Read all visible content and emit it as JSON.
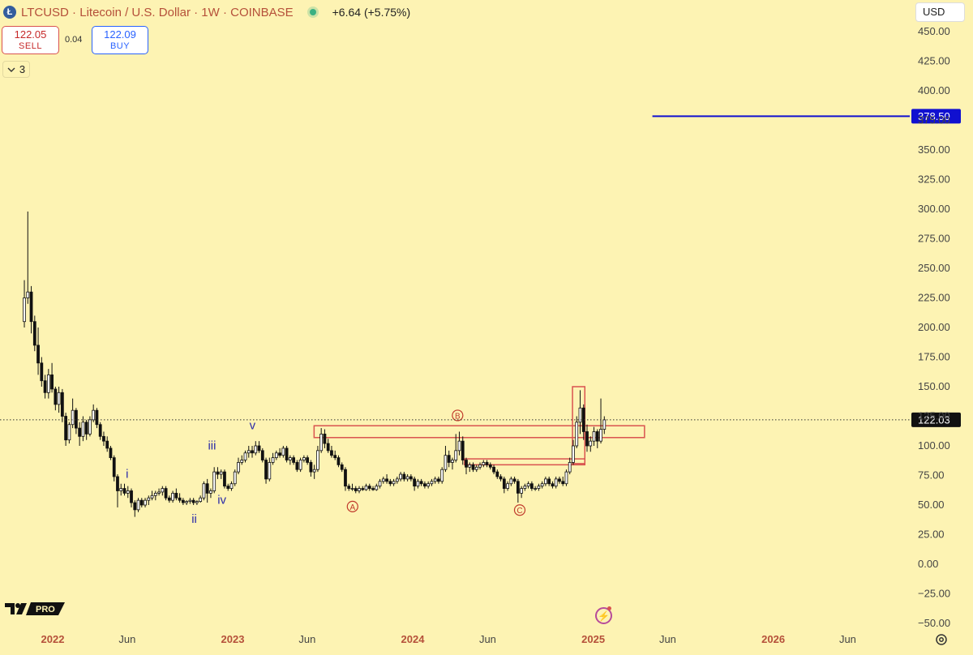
{
  "header": {
    "logo_letter": "Ł",
    "title": "LTCUSD · Litecoin / U.S. Dollar · 1W · COINBASE",
    "change": "+6.64 (+5.75%)",
    "status_color": "#3bb082"
  },
  "trade": {
    "sell_price": "122.05",
    "sell_label": "SELL",
    "spread": "0.04",
    "buy_price": "122.09",
    "buy_label": "BUY"
  },
  "indicators": {
    "count": "3"
  },
  "currency": {
    "label": "USD"
  },
  "colors": {
    "background": "#fdf3b3",
    "candle": "#111111",
    "zone": "#d9534f",
    "label_red": "#c0392b",
    "label_blue": "#2a2aa8",
    "target_line": "#1010d0",
    "axis_text": "#444444"
  },
  "chart_data": {
    "type": "candlestick",
    "symbol": "LTCUSD",
    "interval": "1W",
    "ylim": [
      -50,
      450
    ],
    "y_ticks": [
      "450.00",
      "425.00",
      "400.00",
      "375.00",
      "350.00",
      "325.00",
      "300.00",
      "275.00",
      "250.00",
      "225.00",
      "200.00",
      "175.00",
      "150.00",
      "125.00",
      "100.00",
      "75.00",
      "50.00",
      "25.00",
      "0.00",
      "−25.00",
      "−50.00"
    ],
    "y_tick_values": [
      450,
      425,
      400,
      375,
      350,
      325,
      300,
      275,
      250,
      225,
      200,
      175,
      150,
      125,
      100,
      75,
      50,
      25,
      0,
      -25,
      -50
    ],
    "x_ticks": [
      {
        "label": "2022",
        "date": "2022-01-01",
        "bold": true
      },
      {
        "label": "Jun",
        "date": "2022-06-01",
        "bold": false
      },
      {
        "label": "2023",
        "date": "2023-01-01",
        "bold": true
      },
      {
        "label": "Jun",
        "date": "2023-06-01",
        "bold": false
      },
      {
        "label": "2024",
        "date": "2024-01-01",
        "bold": true
      },
      {
        "label": "Jun",
        "date": "2024-06-01",
        "bold": false
      },
      {
        "label": "2025",
        "date": "2025-01-01",
        "bold": true
      },
      {
        "label": "Jun",
        "date": "2025-06-01",
        "bold": false
      },
      {
        "label": "2026",
        "date": "2026-01-01",
        "bold": true
      },
      {
        "label": "Jun",
        "date": "2026-06-01",
        "bold": false
      }
    ],
    "current_price": {
      "value": 122.03,
      "label": "122.03"
    },
    "target_price": {
      "value": 378.5,
      "label": "378.50",
      "from_date": "2025-05-01"
    },
    "waves": [
      {
        "label": "i",
        "date": "2022-06-01",
        "price": 73,
        "color": "blue",
        "circled": false
      },
      {
        "label": "ii",
        "date": "2022-10-15",
        "price": 35,
        "color": "blue",
        "circled": false
      },
      {
        "label": "iii",
        "date": "2022-11-20",
        "price": 97,
        "color": "blue",
        "circled": false
      },
      {
        "label": "iv",
        "date": "2022-12-10",
        "price": 51,
        "color": "blue",
        "circled": false
      },
      {
        "label": "v",
        "date": "2023-02-10",
        "price": 114,
        "color": "blue",
        "circled": false
      },
      {
        "label": "A",
        "date": "2023-09-01",
        "price": 46,
        "color": "red",
        "circled": true
      },
      {
        "label": "B",
        "date": "2024-04-01",
        "price": 123,
        "color": "red",
        "circled": true
      },
      {
        "label": "C",
        "date": "2024-08-05",
        "price": 43,
        "color": "red",
        "circled": true
      }
    ],
    "zones": [
      {
        "from": "2023-06-15",
        "to": "2025-04-15",
        "top": 117,
        "bottom": 107
      },
      {
        "from": "2024-04-15",
        "to": "2024-12-15",
        "top": 89,
        "bottom": 84
      },
      {
        "from": "2024-11-20",
        "to": "2024-12-15",
        "top": 150,
        "bottom": 85
      }
    ],
    "candles_weekly": [
      [
        "2021-11-01",
        205,
        240,
        200,
        225
      ],
      [
        "2021-11-08",
        225,
        298,
        220,
        230
      ],
      [
        "2021-11-15",
        230,
        235,
        195,
        205
      ],
      [
        "2021-11-22",
        205,
        210,
        180,
        185
      ],
      [
        "2021-11-29",
        185,
        200,
        160,
        170
      ],
      [
        "2021-12-06",
        170,
        175,
        150,
        155
      ],
      [
        "2021-12-13",
        155,
        160,
        140,
        145
      ],
      [
        "2021-12-20",
        145,
        165,
        140,
        160
      ],
      [
        "2021-12-27",
        160,
        170,
        145,
        148
      ],
      [
        "2022-01-03",
        148,
        150,
        130,
        135
      ],
      [
        "2022-01-10",
        135,
        150,
        128,
        145
      ],
      [
        "2022-01-17",
        145,
        148,
        120,
        125
      ],
      [
        "2022-01-24",
        125,
        128,
        100,
        105
      ],
      [
        "2022-01-31",
        105,
        120,
        102,
        118
      ],
      [
        "2022-02-07",
        118,
        140,
        115,
        130
      ],
      [
        "2022-02-14",
        130,
        132,
        110,
        115
      ],
      [
        "2022-02-21",
        115,
        120,
        100,
        108
      ],
      [
        "2022-02-28",
        108,
        125,
        104,
        120
      ],
      [
        "2022-03-07",
        120,
        122,
        105,
        110
      ],
      [
        "2022-03-14",
        110,
        125,
        108,
        122
      ],
      [
        "2022-03-21",
        122,
        135,
        120,
        130
      ],
      [
        "2022-03-28",
        130,
        132,
        115,
        118
      ],
      [
        "2022-04-04",
        118,
        120,
        105,
        108
      ],
      [
        "2022-04-11",
        108,
        112,
        100,
        104
      ],
      [
        "2022-04-18",
        104,
        108,
        95,
        98
      ],
      [
        "2022-04-25",
        98,
        100,
        88,
        90
      ],
      [
        "2022-05-02",
        90,
        92,
        70,
        74
      ],
      [
        "2022-05-09",
        74,
        76,
        48,
        62
      ],
      [
        "2022-05-16",
        62,
        68,
        58,
        64
      ],
      [
        "2022-05-23",
        64,
        68,
        58,
        60
      ],
      [
        "2022-05-30",
        60,
        66,
        56,
        62
      ],
      [
        "2022-06-06",
        62,
        64,
        48,
        52
      ],
      [
        "2022-06-13",
        52,
        54,
        40,
        46
      ],
      [
        "2022-06-20",
        46,
        56,
        44,
        54
      ],
      [
        "2022-06-27",
        54,
        56,
        48,
        50
      ],
      [
        "2022-07-04",
        50,
        56,
        48,
        54
      ],
      [
        "2022-07-11",
        54,
        58,
        50,
        56
      ],
      [
        "2022-07-18",
        56,
        62,
        54,
        58
      ],
      [
        "2022-07-25",
        58,
        62,
        54,
        60
      ],
      [
        "2022-08-01",
        60,
        64,
        58,
        61
      ],
      [
        "2022-08-08",
        61,
        66,
        58,
        64
      ],
      [
        "2022-08-15",
        64,
        66,
        54,
        56
      ],
      [
        "2022-08-22",
        56,
        58,
        52,
        54
      ],
      [
        "2022-08-29",
        54,
        62,
        52,
        60
      ],
      [
        "2022-09-05",
        60,
        64,
        54,
        56
      ],
      [
        "2022-09-12",
        56,
        60,
        52,
        54
      ],
      [
        "2022-09-19",
        54,
        56,
        50,
        52
      ],
      [
        "2022-09-26",
        52,
        54,
        50,
        53
      ],
      [
        "2022-10-03",
        53,
        56,
        51,
        54
      ],
      [
        "2022-10-10",
        54,
        56,
        50,
        52
      ],
      [
        "2022-10-17",
        52,
        54,
        50,
        53
      ],
      [
        "2022-10-24",
        53,
        58,
        52,
        56
      ],
      [
        "2022-10-31",
        56,
        70,
        54,
        68
      ],
      [
        "2022-11-07",
        68,
        72,
        52,
        60
      ],
      [
        "2022-11-14",
        60,
        64,
        56,
        62
      ],
      [
        "2022-11-21",
        62,
        82,
        60,
        78
      ],
      [
        "2022-11-28",
        78,
        82,
        72,
        76
      ],
      [
        "2022-12-05",
        76,
        80,
        72,
        78
      ],
      [
        "2022-12-12",
        78,
        80,
        64,
        66
      ],
      [
        "2022-12-19",
        66,
        68,
        62,
        64
      ],
      [
        "2022-12-26",
        64,
        70,
        62,
        68
      ],
      [
        "2023-01-02",
        68,
        80,
        66,
        78
      ],
      [
        "2023-01-09",
        78,
        90,
        76,
        86
      ],
      [
        "2023-01-16",
        86,
        92,
        84,
        88
      ],
      [
        "2023-01-23",
        88,
        96,
        86,
        94
      ],
      [
        "2023-01-30",
        94,
        100,
        90,
        96
      ],
      [
        "2023-02-06",
        96,
        100,
        90,
        94
      ],
      [
        "2023-02-13",
        94,
        104,
        92,
        100
      ],
      [
        "2023-02-20",
        100,
        104,
        94,
        96
      ],
      [
        "2023-02-27",
        96,
        98,
        86,
        88
      ],
      [
        "2023-03-06",
        88,
        90,
        68,
        72
      ],
      [
        "2023-03-13",
        72,
        90,
        70,
        86
      ],
      [
        "2023-03-20",
        86,
        94,
        84,
        90
      ],
      [
        "2023-03-27",
        90,
        96,
        88,
        94
      ],
      [
        "2023-04-03",
        94,
        98,
        90,
        92
      ],
      [
        "2023-04-10",
        92,
        100,
        90,
        98
      ],
      [
        "2023-04-17",
        98,
        100,
        86,
        88
      ],
      [
        "2023-04-24",
        88,
        92,
        84,
        90
      ],
      [
        "2023-05-01",
        90,
        92,
        84,
        86
      ],
      [
        "2023-05-08",
        86,
        88,
        78,
        80
      ],
      [
        "2023-05-15",
        80,
        90,
        78,
        88
      ],
      [
        "2023-05-22",
        88,
        92,
        86,
        90
      ],
      [
        "2023-05-29",
        90,
        92,
        84,
        86
      ],
      [
        "2023-06-05",
        86,
        88,
        74,
        78
      ],
      [
        "2023-06-12",
        78,
        84,
        72,
        80
      ],
      [
        "2023-06-19",
        80,
        100,
        78,
        96
      ],
      [
        "2023-06-26",
        96,
        115,
        94,
        110
      ],
      [
        "2023-07-03",
        110,
        114,
        98,
        102
      ],
      [
        "2023-07-10",
        102,
        106,
        94,
        96
      ],
      [
        "2023-07-17",
        96,
        100,
        90,
        92
      ],
      [
        "2023-07-24",
        92,
        96,
        88,
        90
      ],
      [
        "2023-07-31",
        90,
        92,
        82,
        84
      ],
      [
        "2023-08-07",
        84,
        86,
        78,
        80
      ],
      [
        "2023-08-14",
        80,
        82,
        62,
        66
      ],
      [
        "2023-08-21",
        66,
        68,
        62,
        64
      ],
      [
        "2023-08-28",
        64,
        68,
        62,
        64
      ],
      [
        "2023-09-04",
        64,
        66,
        60,
        62
      ],
      [
        "2023-09-11",
        62,
        66,
        60,
        64
      ],
      [
        "2023-09-18",
        64,
        66,
        62,
        63
      ],
      [
        "2023-09-25",
        63,
        68,
        62,
        66
      ],
      [
        "2023-10-02",
        66,
        68,
        62,
        64
      ],
      [
        "2023-10-09",
        64,
        66,
        62,
        63
      ],
      [
        "2023-10-16",
        63,
        68,
        62,
        66
      ],
      [
        "2023-10-23",
        66,
        72,
        64,
        70
      ],
      [
        "2023-10-30",
        70,
        74,
        68,
        72
      ],
      [
        "2023-11-06",
        72,
        76,
        68,
        70
      ],
      [
        "2023-11-13",
        70,
        72,
        66,
        68
      ],
      [
        "2023-11-20",
        68,
        72,
        66,
        70
      ],
      [
        "2023-11-27",
        70,
        74,
        68,
        72
      ],
      [
        "2023-12-04",
        72,
        78,
        70,
        76
      ],
      [
        "2023-12-11",
        76,
        78,
        70,
        72
      ],
      [
        "2023-12-18",
        72,
        76,
        70,
        74
      ],
      [
        "2023-12-25",
        74,
        76,
        70,
        72
      ],
      [
        "2024-01-01",
        72,
        74,
        62,
        66
      ],
      [
        "2024-01-08",
        66,
        72,
        64,
        70
      ],
      [
        "2024-01-15",
        70,
        72,
        66,
        68
      ],
      [
        "2024-01-22",
        68,
        70,
        64,
        66
      ],
      [
        "2024-01-29",
        66,
        70,
        64,
        68
      ],
      [
        "2024-02-05",
        68,
        72,
        66,
        70
      ],
      [
        "2024-02-12",
        70,
        74,
        68,
        72
      ],
      [
        "2024-02-19",
        72,
        74,
        68,
        70
      ],
      [
        "2024-02-26",
        70,
        82,
        68,
        80
      ],
      [
        "2024-03-04",
        80,
        100,
        78,
        92
      ],
      [
        "2024-03-11",
        92,
        96,
        82,
        86
      ],
      [
        "2024-03-18",
        86,
        90,
        80,
        88
      ],
      [
        "2024-03-25",
        88,
        110,
        86,
        96
      ],
      [
        "2024-04-01",
        96,
        112,
        92,
        104
      ],
      [
        "2024-04-08",
        104,
        108,
        84,
        88
      ],
      [
        "2024-04-15",
        88,
        90,
        76,
        82
      ],
      [
        "2024-04-22",
        82,
        86,
        78,
        84
      ],
      [
        "2024-04-29",
        84,
        86,
        78,
        80
      ],
      [
        "2024-05-06",
        80,
        84,
        78,
        82
      ],
      [
        "2024-05-13",
        82,
        86,
        80,
        84
      ],
      [
        "2024-05-20",
        84,
        88,
        82,
        86
      ],
      [
        "2024-05-27",
        86,
        88,
        82,
        84
      ],
      [
        "2024-06-03",
        84,
        86,
        80,
        82
      ],
      [
        "2024-06-10",
        82,
        84,
        76,
        78
      ],
      [
        "2024-06-17",
        78,
        80,
        72,
        74
      ],
      [
        "2024-06-24",
        74,
        76,
        70,
        72
      ],
      [
        "2024-07-01",
        72,
        74,
        60,
        64
      ],
      [
        "2024-07-08",
        64,
        70,
        62,
        68
      ],
      [
        "2024-07-15",
        68,
        74,
        66,
        72
      ],
      [
        "2024-07-22",
        72,
        74,
        68,
        70
      ],
      [
        "2024-07-29",
        70,
        72,
        52,
        60
      ],
      [
        "2024-08-05",
        60,
        66,
        56,
        64
      ],
      [
        "2024-08-12",
        64,
        68,
        62,
        66
      ],
      [
        "2024-08-19",
        66,
        70,
        64,
        68
      ],
      [
        "2024-08-26",
        68,
        70,
        62,
        64
      ],
      [
        "2024-09-02",
        64,
        66,
        62,
        64
      ],
      [
        "2024-09-09",
        64,
        68,
        62,
        66
      ],
      [
        "2024-09-16",
        66,
        70,
        64,
        68
      ],
      [
        "2024-09-23",
        68,
        74,
        66,
        72
      ],
      [
        "2024-09-30",
        72,
        74,
        66,
        68
      ],
      [
        "2024-10-07",
        68,
        70,
        64,
        66
      ],
      [
        "2024-10-14",
        66,
        74,
        64,
        72
      ],
      [
        "2024-10-21",
        72,
        74,
        68,
        70
      ],
      [
        "2024-10-28",
        70,
        74,
        66,
        68
      ],
      [
        "2024-11-04",
        68,
        80,
        66,
        78
      ],
      [
        "2024-11-11",
        78,
        90,
        76,
        86
      ],
      [
        "2024-11-18",
        86,
        105,
        84,
        100
      ],
      [
        "2024-11-25",
        100,
        125,
        98,
        120
      ],
      [
        "2024-12-02",
        120,
        147,
        110,
        132
      ],
      [
        "2024-12-09",
        132,
        135,
        105,
        112
      ],
      [
        "2024-12-16",
        112,
        118,
        95,
        100
      ],
      [
        "2024-12-23",
        100,
        108,
        95,
        104
      ],
      [
        "2024-12-30",
        104,
        116,
        100,
        112
      ],
      [
        "2025-01-06",
        112,
        114,
        98,
        104
      ],
      [
        "2025-01-13",
        104,
        140,
        102,
        114
      ],
      [
        "2025-01-20",
        114,
        125,
        110,
        122
      ]
    ]
  }
}
